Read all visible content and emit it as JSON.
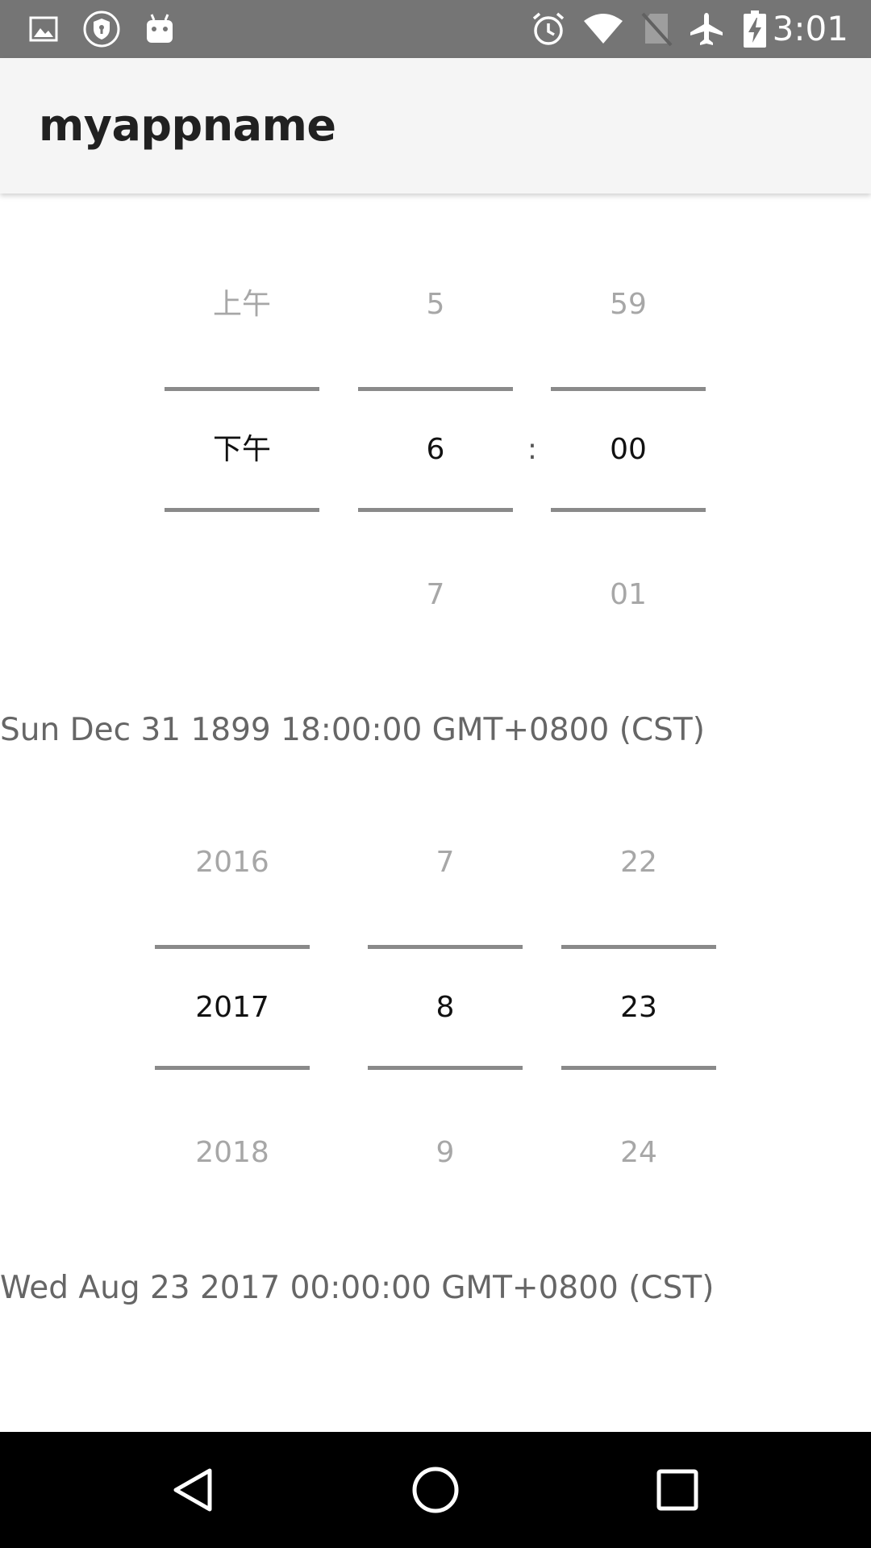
{
  "status_bar": {
    "time": "3:01",
    "left_icons": [
      "image-icon",
      "shield-icon",
      "android-icon"
    ],
    "right_icons": [
      "alarm-icon",
      "wifi-icon",
      "no-sim-icon",
      "airplane-mode-icon",
      "battery-charging-icon"
    ]
  },
  "app_bar": {
    "title": "myappname"
  },
  "time_picker": {
    "ampm": {
      "prev": "上午",
      "selected": "下午",
      "next": ""
    },
    "hour": {
      "prev": "5",
      "selected": "6",
      "next": "7"
    },
    "separator": ":",
    "minute": {
      "prev": "59",
      "selected": "00",
      "next": "01"
    }
  },
  "time_result": "Sun Dec 31 1899 18:00:00 GMT+0800 (CST)",
  "date_picker": {
    "year": {
      "prev": "2016",
      "selected": "2017",
      "next": "2018"
    },
    "month": {
      "prev": "7",
      "selected": "8",
      "next": "9"
    },
    "day": {
      "prev": "22",
      "selected": "23",
      "next": "24"
    }
  },
  "date_result": "Wed Aug 23 2017 00:00:00 GMT+0800 (CST)",
  "nav_bar": {
    "icons": [
      "back-icon",
      "home-icon",
      "recents-icon"
    ]
  }
}
